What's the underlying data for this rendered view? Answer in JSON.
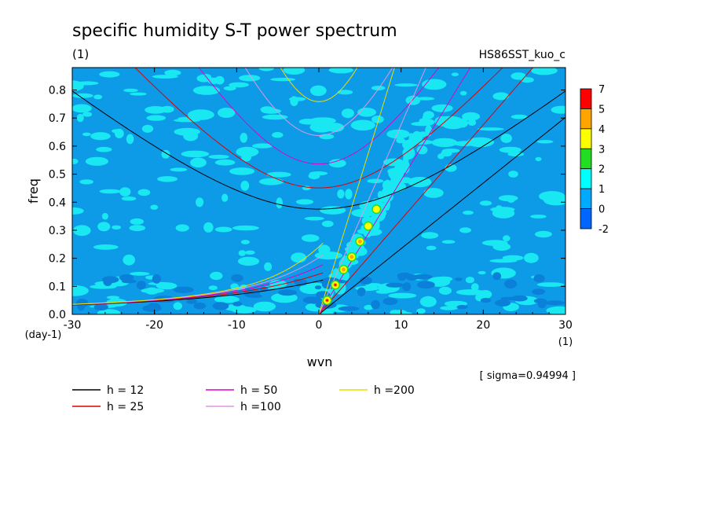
{
  "chart_data": {
    "type": "heatmap",
    "title": "specific humidity S-T power spectrum",
    "subtitle_left": "(1)",
    "subtitle_right": "HS86SST_kuo_c",
    "xlabel": "wvn",
    "ylabel": "freq",
    "x_unit": "(1)",
    "y_unit": "(day-1)",
    "xlim": [
      -30,
      30
    ],
    "ylim": [
      0,
      0.88
    ],
    "x_ticks": [
      -30,
      -20,
      -10,
      0,
      10,
      20,
      30
    ],
    "x_tick_labels": [
      "-30",
      "-20",
      "-10",
      "0",
      "10",
      "20",
      "30"
    ],
    "y_ticks": [
      0.0,
      0.1,
      0.2,
      0.3,
      0.4,
      0.5,
      0.6,
      0.7,
      0.8
    ],
    "y_tick_labels": [
      "0.0",
      "0.1",
      "0.2",
      "0.3",
      "0.4",
      "0.5",
      "0.6",
      "0.7",
      "0.8"
    ],
    "sigma_label": "[ sigma=0.94994 ]",
    "colorbar": {
      "levels": [
        "7",
        "5",
        "4",
        "3",
        "2",
        "1",
        "0",
        "-2"
      ],
      "colors": [
        "#ff0000",
        "#ffa500",
        "#ffff00",
        "#22dd22",
        "#00ffff",
        "#00aaff",
        "#0066ff"
      ]
    },
    "dispersion_curves": [
      {
        "name": "h = 12",
        "h": 12,
        "color": "#000000"
      },
      {
        "name": "h = 25",
        "h": 25,
        "color": "#dd0000"
      },
      {
        "name": "h = 50",
        "h": 50,
        "color": "#dd00cc"
      },
      {
        "name": "h =100",
        "h": 100,
        "color": "#dd99dd"
      },
      {
        "name": "h =200",
        "h": 200,
        "color": "#eedd00"
      }
    ],
    "kelvin_peaks": [
      {
        "wvn": 1,
        "freq": 0.05
      },
      {
        "wvn": 2,
        "freq": 0.105
      },
      {
        "wvn": 3,
        "freq": 0.16
      },
      {
        "wvn": 4,
        "freq": 0.205
      },
      {
        "wvn": 5,
        "freq": 0.26
      },
      {
        "wvn": 6,
        "freq": 0.315
      },
      {
        "wvn": 7,
        "freq": 0.375
      }
    ]
  }
}
